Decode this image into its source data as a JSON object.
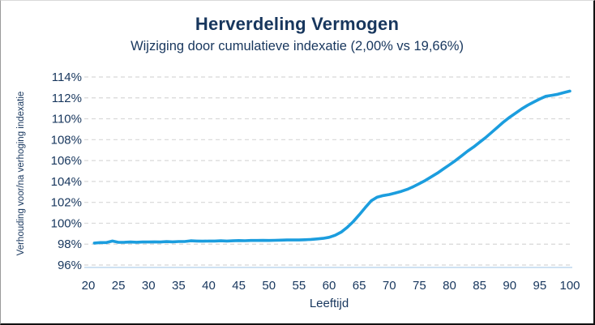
{
  "header": {
    "title": "Herverdeling Vermogen",
    "subtitle": "Wijziging door cumulatieve indexatie (2,00% vs 19,66%)"
  },
  "colors": {
    "text": "#17365d",
    "line": "#1b9dde",
    "gridline": "#d8d8d8",
    "axis_line": "#bdd7ee",
    "background": "#ffffff"
  },
  "chart_data": {
    "type": "line",
    "title": "Herverdeling Vermogen",
    "subtitle": "Wijziging door cumulatieve indexatie (2,00% vs 19,66%)",
    "xlabel": "Leeftijd",
    "ylabel": "Verhouding voor/na verhoging indexatie",
    "xlim": [
      20,
      100
    ],
    "ylim": [
      96,
      114
    ],
    "xticks": [
      20,
      25,
      30,
      35,
      40,
      45,
      50,
      55,
      60,
      65,
      70,
      75,
      80,
      85,
      90,
      95,
      100
    ],
    "yticks": [
      96,
      98,
      100,
      102,
      104,
      106,
      108,
      110,
      112,
      114
    ],
    "ytick_suffix": "%",
    "grid": "horizontal-dashed",
    "legend": "none",
    "series": [
      {
        "name": "Verhouding voor/na verhoging indexatie",
        "x": [
          21,
          22,
          23,
          24,
          25,
          26,
          27,
          28,
          29,
          30,
          31,
          32,
          33,
          34,
          35,
          36,
          37,
          38,
          39,
          40,
          41,
          42,
          43,
          44,
          45,
          46,
          47,
          48,
          49,
          50,
          51,
          52,
          53,
          54,
          55,
          56,
          57,
          58,
          59,
          60,
          61,
          62,
          63,
          64,
          65,
          66,
          67,
          68,
          69,
          70,
          71,
          72,
          73,
          74,
          75,
          76,
          77,
          78,
          79,
          80,
          81,
          82,
          83,
          84,
          85,
          86,
          87,
          88,
          89,
          90,
          91,
          92,
          93,
          94,
          95,
          96,
          97,
          98,
          99,
          100
        ],
        "values": [
          98.1,
          98.15,
          98.15,
          98.3,
          98.17,
          98.18,
          98.2,
          98.18,
          98.2,
          98.2,
          98.22,
          98.2,
          98.24,
          98.22,
          98.25,
          98.25,
          98.32,
          98.3,
          98.28,
          98.3,
          98.3,
          98.32,
          98.3,
          98.32,
          98.34,
          98.33,
          98.35,
          98.35,
          98.36,
          98.35,
          98.37,
          98.38,
          98.4,
          98.4,
          98.4,
          98.42,
          98.45,
          98.5,
          98.55,
          98.65,
          98.85,
          99.15,
          99.6,
          100.15,
          100.8,
          101.5,
          102.15,
          102.5,
          102.65,
          102.75,
          102.9,
          103.05,
          103.25,
          103.5,
          103.8,
          104.1,
          104.45,
          104.8,
          105.2,
          105.6,
          106.0,
          106.45,
          106.9,
          107.3,
          107.75,
          108.2,
          108.7,
          109.2,
          109.7,
          110.15,
          110.55,
          110.95,
          111.3,
          111.6,
          111.9,
          112.15,
          112.25,
          112.35,
          112.5,
          112.65
        ]
      }
    ]
  }
}
